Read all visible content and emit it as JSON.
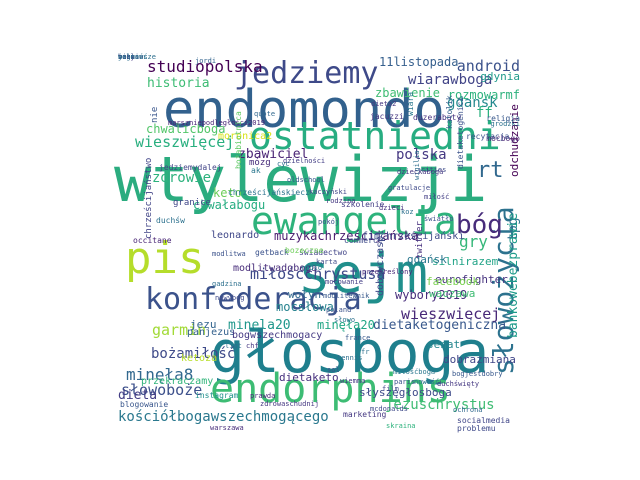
{
  "wordcloud": {
    "words": [
      {
        "text": "wtylewizji",
        "color": "#2bac7f"
      },
      {
        "text": "sejm",
        "color": "#208f8c"
      },
      {
        "text": "głosboga",
        "color": "#1f7f8d"
      },
      {
        "text": "endomondo",
        "color": "#32618d"
      },
      {
        "text": "pis",
        "color": "#b5dd2b"
      },
      {
        "text": "ostatniedni",
        "color": "#27ad81"
      },
      {
        "text": "endorphins",
        "color": "#3dbc74"
      },
      {
        "text": "ewangelia",
        "color": "#2eb37c"
      },
      {
        "text": "konfederacja",
        "color": "#3b528b"
      },
      {
        "text": "jedziemy",
        "color": "#3e4a89"
      },
      {
        "text": "słowożycia",
        "color": "#2c728e"
      },
      {
        "text": "bóg",
        "color": "#472c7a"
      },
      {
        "text": "rt",
        "color": "#31688e"
      },
      {
        "text": "miłośćchrystusa",
        "color": "#3e4989"
      },
      {
        "text": "studiopolska",
        "color": "#440154"
      },
      {
        "text": "android",
        "color": "#3b528b"
      },
      {
        "text": "wiarawboga",
        "color": "#414487"
      },
      {
        "text": "gdansk",
        "color": "#23898e"
      },
      {
        "text": "ff",
        "color": "#2ab07f"
      },
      {
        "text": "wieszwięcej",
        "color": "#29af7f"
      },
      {
        "text": "zbawiciel",
        "color": "#482374"
      },
      {
        "text": "polska",
        "color": "#453882"
      },
      {
        "text": "zdrowie",
        "color": "#2db27d"
      },
      {
        "text": "gry",
        "color": "#35b779"
      },
      {
        "text": "wieszwiecej",
        "color": "#482878"
      },
      {
        "text": "garmin",
        "color": "#a2da37"
      },
      {
        "text": "bożamiłość",
        "color": "#3e4a89"
      },
      {
        "text": "minęła8",
        "color": "#31688e"
      },
      {
        "text": "słowoboże",
        "color": "#3c508b"
      },
      {
        "text": "dietaketogeniczna",
        "color": "#38588c"
      },
      {
        "text": "wybory2019",
        "color": "#472d7b"
      },
      {
        "text": "mocsłowa",
        "color": "#26828e"
      },
      {
        "text": "minela20",
        "color": "#1f978b"
      },
      {
        "text": "minęła20",
        "color": "#21a685"
      },
      {
        "text": "jezuschrystus",
        "color": "#3fbc73"
      },
      {
        "text": "kościółbogawszechmogącego",
        "color": "#2a788e"
      },
      {
        "text": "dieta",
        "color": "#433e85"
      },
      {
        "text": "historia",
        "color": "#3dbc74"
      },
      {
        "text": "chwalicboga",
        "color": "#52c569"
      },
      {
        "text": "keto",
        "color": "#6ccd5a"
      },
      {
        "text": "chwałabogu",
        "color": "#26ad81"
      },
      {
        "text": "muzykachrześcijańska",
        "color": "#481b6d"
      },
      {
        "text": "tpg",
        "color": "#2d708e"
      },
      {
        "text": "bankowebezprawie",
        "color": "#1e9b8a"
      },
      {
        "text": "odchudzanie",
        "color": "#440154"
      },
      {
        "text": "11listopada",
        "color": "#355f8d"
      },
      {
        "text": "zbawienie",
        "color": "#3fbc73"
      },
      {
        "text": "gdynia",
        "color": "#1f9a8a"
      },
      {
        "text": "rozmowarmf",
        "color": "#2db27d"
      },
      {
        "text": "eurofighter",
        "color": "#46337f"
      },
      {
        "text": "silnirazem",
        "color": "#20a386"
      },
      {
        "text": "facebook",
        "color": "#7ad151"
      },
      {
        "text": "waczawa",
        "color": "#3fbc73"
      },
      {
        "text": "dietaketo",
        "color": "#46307e"
      },
      {
        "text": "senat",
        "color": "#24868e"
      },
      {
        "text": "dobrazmiana",
        "color": "#404688"
      },
      {
        "text": "słyszęgłosboga",
        "color": "#3e4a89"
      },
      {
        "text": "przekraczamy",
        "color": "#31b57b"
      },
      {
        "text": "ketoza",
        "color": "#b8de29"
      },
      {
        "text": "leonardo",
        "color": "#3f4788"
      },
      {
        "text": "wołyń",
        "color": "#31688e"
      },
      {
        "text": "jezu",
        "color": "#32648e"
      },
      {
        "text": "panjezus",
        "color": "#34618d"
      },
      {
        "text": "modlitwadoboga",
        "color": "#472c7a"
      },
      {
        "text": "bogwszechmogacy",
        "color": "#443983"
      },
      {
        "text": "granice",
        "color": "#404688"
      },
      {
        "text": "nie",
        "color": "#39568c"
      },
      {
        "text": "mózg",
        "color": "#472c7a"
      },
      {
        "text": "ak",
        "color": "#2a778e"
      },
      {
        "text": "chrześcijaństwo",
        "color": "#414487"
      },
      {
        "text": "gdańsk",
        "color": "#2a768e"
      },
      {
        "text": "fimchrześcijański",
        "color": "#3e4a89"
      },
      {
        "text": "dobryczaspl",
        "color": "#3e4a89"
      },
      {
        "text": "moronica2",
        "color": "#d8e219"
      },
      {
        "text": "jedziemydalej",
        "color": "#414487"
      },
      {
        "text": "chrześcijańskiecz",
        "color": "#2c728e"
      },
      {
        "text": "szkolenie",
        "color": "#433e85"
      },
      {
        "text": "marszniepodległości2019",
        "color": "#482576"
      },
      {
        "text": "twitter",
        "color": "#46307e"
      },
      {
        "text": "dietaketogenicz",
        "color": "#3b528b"
      },
      {
        "text": "mocbogo",
        "color": "#482374"
      },
      {
        "text": "religia",
        "color": "#38588c"
      },
      {
        "text": "duzerabaty",
        "color": "#46317e"
      },
      {
        "text": "jacuzzi",
        "color": "#453781"
      },
      {
        "text": "quote",
        "color": "#31688e"
      },
      {
        "text": "recytacja",
        "color": "#3b528b"
      },
      {
        "text": "katolik",
        "color": "#355f8d"
      },
      {
        "text": "wiara",
        "color": "#2a788e"
      },
      {
        "text": "marketing",
        "color": "#453882"
      },
      {
        "text": "skraina",
        "color": "#2db27d"
      },
      {
        "text": "socialmedia",
        "color": "#404688"
      },
      {
        "text": "instagram",
        "color": "#21918c"
      },
      {
        "text": "blogowanie",
        "color": "#39568c"
      },
      {
        "text": "problemu",
        "color": "#3e4989"
      },
      {
        "text": "jordi",
        "color": "#32648e"
      },
      {
        "text": "warszawa",
        "color": "#472d7b"
      },
      {
        "text": "duchśw",
        "color": "#2c718e"
      },
      {
        "text": "occitane",
        "color": "#482475"
      },
      {
        "text": "świadectwo",
        "color": "#414487"
      },
      {
        "text": "commerce",
        "color": "#3e4a89"
      },
      {
        "text": "getback",
        "color": "#3b528b"
      },
      {
        "text": "bozeczne",
        "color": "#6ece58"
      },
      {
        "text": "bożabiotnica",
        "color": "#5ec962"
      },
      {
        "text": "przekreślony",
        "color": "#482878"
      },
      {
        "text": "dzielności",
        "color": "#433e85"
      },
      {
        "text": "ochrona",
        "color": "#31688e"
      },
      {
        "text": "wiemma",
        "color": "#443983"
      },
      {
        "text": "chf",
        "color": "#453781"
      },
      {
        "text": "ligt",
        "color": "#2d708e"
      },
      {
        "text": "cities",
        "color": "#3e4a89"
      },
      {
        "text": "wigilia",
        "color": "#2e6f8e"
      },
      {
        "text": "światło",
        "color": "#3b528b"
      },
      {
        "text": "dzieckaboga",
        "color": "#453882"
      },
      {
        "text": "rodzina",
        "color": "#453882"
      },
      {
        "text": "oldschool",
        "color": "#38588c"
      },
      {
        "text": "gratulacje",
        "color": "#3e4989"
      },
      {
        "text": "kaczyński",
        "color": "#404688"
      },
      {
        "text": "pokój",
        "color": "#3b528b"
      },
      {
        "text": "modlitwa",
        "color": "#3b528b"
      },
      {
        "text": "cyc",
        "color": "#2e6f8e"
      },
      {
        "text": "koz",
        "color": "#2c718e"
      },
      {
        "text": "miłość",
        "color": "#433e85"
      },
      {
        "text": "dzieci",
        "color": "#46317e"
      },
      {
        "text": "grodzki",
        "color": "#2c718e"
      },
      {
        "text": "dieta2",
        "color": "#453882"
      },
      {
        "text": "duchświęty",
        "color": "#453882"
      },
      {
        "text": "sol",
        "color": "#3b528b"
      },
      {
        "text": "mcdonalds",
        "color": "#3e4989"
      },
      {
        "text": "bogjestdobry",
        "color": "#38588c"
      },
      {
        "text": "miłośćboga",
        "color": "#2a778e"
      },
      {
        "text": "prawda",
        "color": "#482878"
      },
      {
        "text": "zdrowaschudnij",
        "color": "#453882"
      },
      {
        "text": "nowość",
        "color": "#2d708e"
      },
      {
        "text": "paris",
        "color": "#3b528b"
      },
      {
        "text": "film",
        "color": "#3e4a89"
      },
      {
        "text": "fr",
        "color": "#2d708e"
      },
      {
        "text": "france",
        "color": "#38588c"
      },
      {
        "text": "tennis",
        "color": "#2e6f8e"
      },
      {
        "text": "radio",
        "color": "#2a778e"
      },
      {
        "text": "mocowanie",
        "color": "#433e85"
      },
      {
        "text": "karta",
        "color": "#3e4a89"
      },
      {
        "text": "modlitewnik",
        "color": "#38588c"
      },
      {
        "text": "poland",
        "color": "#3b528b"
      },
      {
        "text": "słowo",
        "color": "#2c718e"
      },
      {
        "text": "gadzina",
        "color": "#2d708e"
      },
      {
        "text": "nowybog",
        "color": "#3e4989"
      },
      {
        "text": "bogzawsze",
        "color": "#2e6f8e"
      },
      {
        "text": "oczy",
        "color": "#453882"
      },
      {
        "text": "szum",
        "color": "#38588c"
      },
      {
        "text": "noc",
        "color": "#3e4a89"
      },
      {
        "text": "jezus",
        "color": "#2d708e"
      },
      {
        "text": "biblia",
        "color": "#3b528b"
      },
      {
        "text": "wolność",
        "color": "#2c718e"
      }
    ]
  }
}
